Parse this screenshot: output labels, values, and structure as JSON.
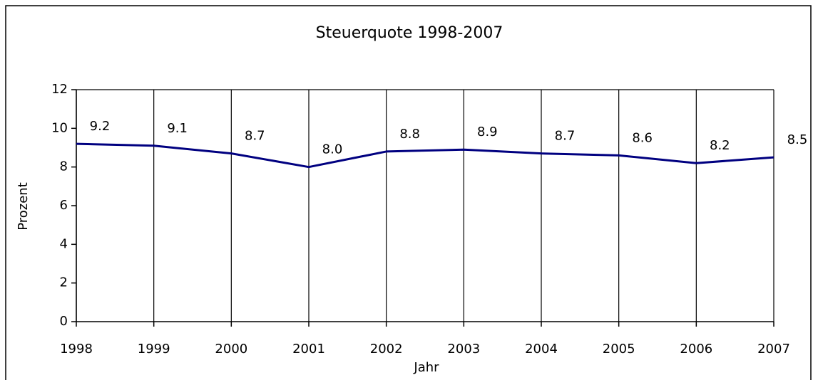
{
  "chart_data": {
    "type": "line",
    "title": "Steuerquote 1998-2007",
    "xlabel": "Jahr",
    "ylabel": "Prozent",
    "categories": [
      "1998",
      "1999",
      "2000",
      "2001",
      "2002",
      "2003",
      "2004",
      "2005",
      "2006",
      "2007"
    ],
    "series": [
      {
        "name": "Steuerquote",
        "color": "#000080",
        "values": [
          9.2,
          9.1,
          8.7,
          8.0,
          8.8,
          8.9,
          8.7,
          8.6,
          8.2,
          8.5
        ],
        "value_labels": [
          "9.2",
          "9.1",
          "8.7",
          "8.0",
          "8.8",
          "8.9",
          "8.7",
          "8.6",
          "8.2",
          "8.5"
        ]
      }
    ],
    "ylim": [
      0,
      12
    ],
    "yticks": [
      0,
      2,
      4,
      6,
      8,
      10,
      12
    ],
    "grid": true
  }
}
